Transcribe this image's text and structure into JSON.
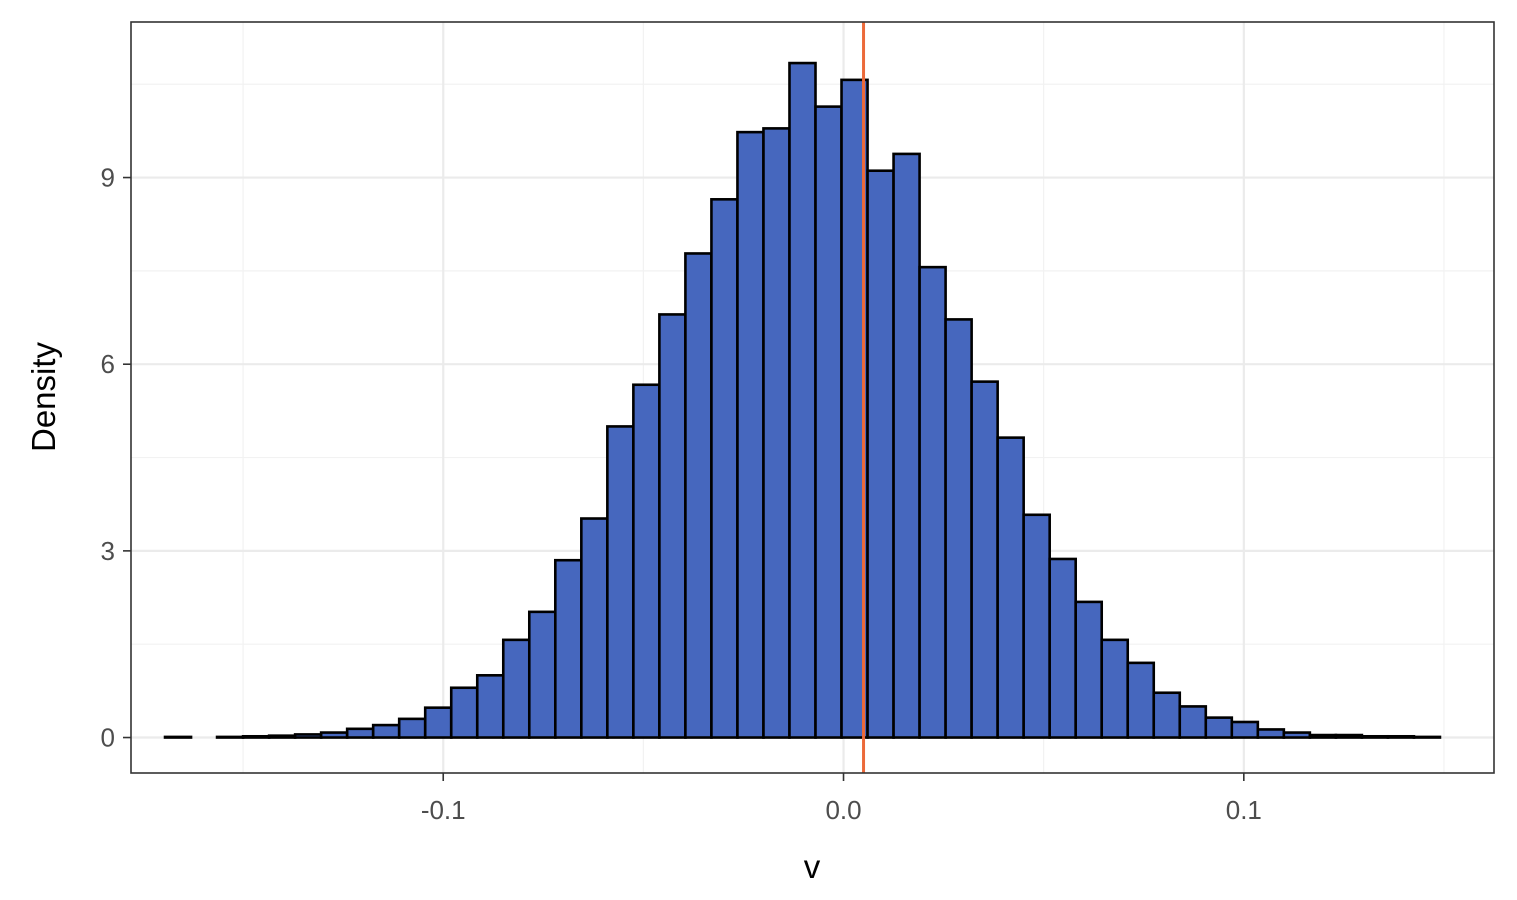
{
  "chart_data": {
    "type": "histogram",
    "xlabel": "v",
    "ylabel": "Density",
    "xlim": [
      -0.178,
      0.1625
    ],
    "ylim": [
      -0.57,
      11.5
    ],
    "x_ticks": [
      -0.1,
      0.0,
      0.1
    ],
    "x_tick_labels": [
      "-0.1",
      "0.0",
      "0.1"
    ],
    "x_minor_ticks": [
      -0.15,
      -0.05,
      0.05,
      0.15
    ],
    "y_ticks": [
      0,
      3,
      6,
      9
    ],
    "y_tick_labels": [
      "0",
      "3",
      "6",
      "9"
    ],
    "y_minor_ticks": [
      1.5,
      4.5,
      7.5,
      10.5
    ],
    "bin_width": 0.0065,
    "bin_start": -0.1695,
    "densities": [
      0.01,
      0.0,
      0.01,
      0.02,
      0.03,
      0.05,
      0.08,
      0.14,
      0.2,
      0.3,
      0.48,
      0.8,
      1.0,
      1.57,
      2.02,
      2.85,
      3.52,
      5.0,
      5.67,
      6.8,
      7.78,
      8.65,
      9.73,
      9.79,
      10.84,
      10.14,
      10.57,
      9.11,
      9.38,
      7.56,
      6.72,
      5.72,
      4.82,
      3.58,
      2.87,
      2.18,
      1.57,
      1.2,
      0.72,
      0.5,
      0.32,
      0.25,
      0.13,
      0.08,
      0.04,
      0.04,
      0.02,
      0.02,
      0.01
    ],
    "vline": 0.005,
    "colors": {
      "bar_fill": "#4667BE",
      "bar_stroke": "#000000",
      "vline": "#EC6A3A",
      "grid_major": "#EBEBEB",
      "grid_minor": "#F2F2F2",
      "panel_border": "#333333"
    },
    "grid": true,
    "legend": "none"
  }
}
